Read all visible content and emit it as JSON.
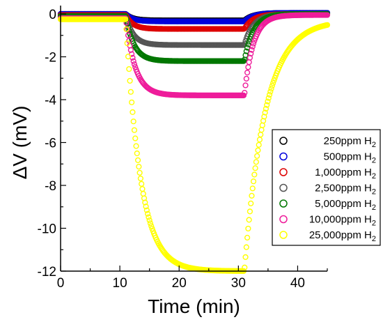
{
  "chart_data": {
    "type": "scatter",
    "xlabel": "Time (min)",
    "ylabel": "ΔV (mV)",
    "xlim": [
      0,
      45
    ],
    "ylim": [
      -12,
      0
    ],
    "xticks": [
      "0",
      "10",
      "20",
      "30",
      "40"
    ],
    "yticks": [
      "0",
      "-2",
      "-4",
      "-6",
      "-8",
      "-10",
      "-12"
    ],
    "grid": false,
    "legend_position": "right",
    "marker": "open-circle",
    "exposure": {
      "on_min": 11,
      "off_min": 31
    },
    "series": [
      {
        "name": "250ppm H",
        "subscript": "2",
        "color": "#000000",
        "baseline": 0.0,
        "plateau": -0.3,
        "tau_down": 1.2,
        "tau_up": 1.5,
        "end": 0.05
      },
      {
        "name": "500ppm H",
        "subscript": "2",
        "color": "#0000dd",
        "baseline": 0.0,
        "plateau": -0.35,
        "tau_down": 1.2,
        "tau_up": 1.5,
        "end": 0.05
      },
      {
        "name": "1,000ppm H",
        "subscript": "2",
        "color": "#dd0000",
        "baseline": -0.05,
        "plateau": -0.7,
        "tau_down": 1.2,
        "tau_up": 1.5,
        "end": 0.0
      },
      {
        "name": "2,500ppm H",
        "subscript": "2",
        "color": "#555555",
        "baseline": -0.1,
        "plateau": -1.45,
        "tau_down": 1.3,
        "tau_up": 1.5,
        "end": 0.0
      },
      {
        "name": "5,000ppm H",
        "subscript": "2",
        "color": "#007700",
        "baseline": -0.1,
        "plateau": -2.2,
        "tau_down": 1.4,
        "tau_up": 1.5,
        "end": 0.0
      },
      {
        "name": "10,000ppm H",
        "subscript": "2",
        "color": "#ee1c9a",
        "baseline": -0.2,
        "plateau": -3.8,
        "tau_down": 1.6,
        "tau_up": 1.5,
        "end": -0.05
      },
      {
        "name": "25,000ppm H",
        "subscript": "2",
        "color": "#ffff00",
        "baseline": -0.25,
        "plateau": -12.0,
        "tau_down": 2.5,
        "tau_up": 3.5,
        "end": -0.3
      }
    ]
  }
}
